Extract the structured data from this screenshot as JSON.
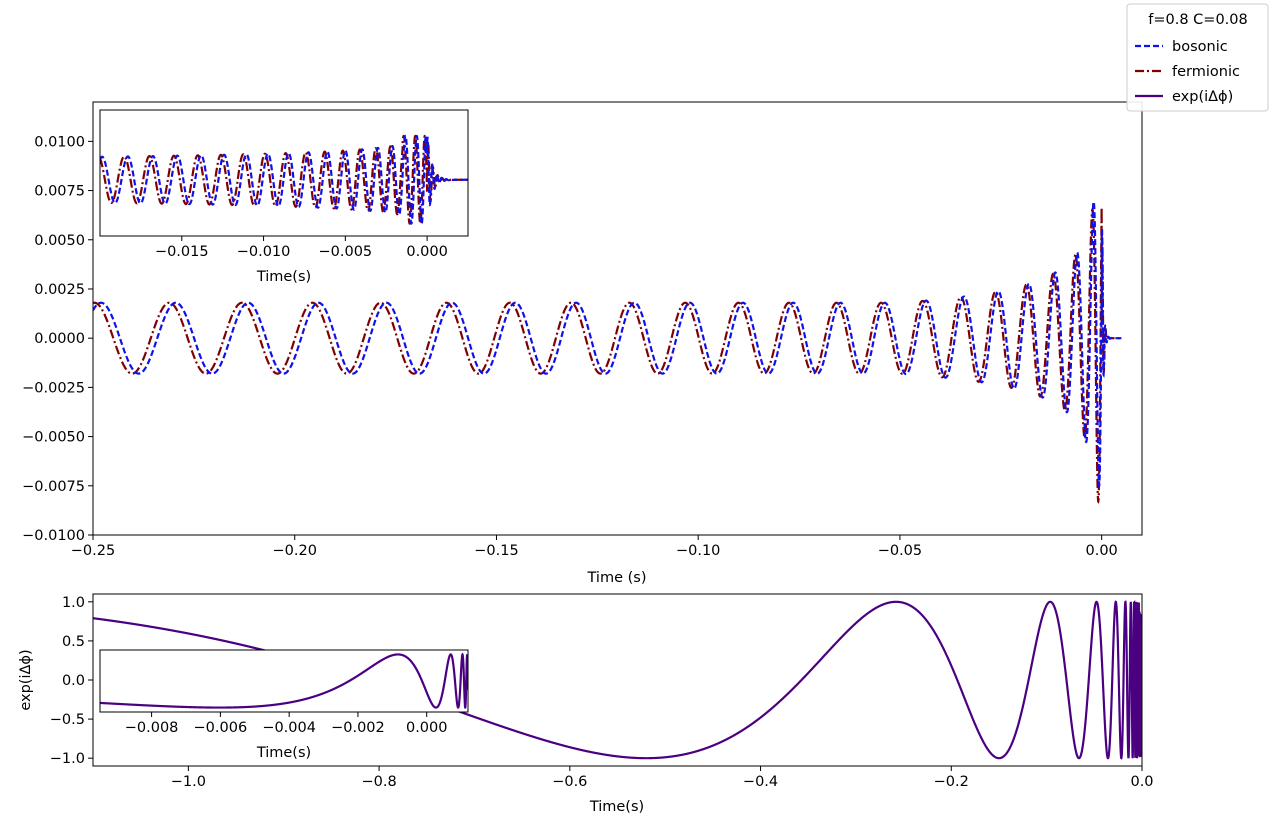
{
  "colors": {
    "bosonic": "#1010e8",
    "fermionic": "#800000",
    "phase": "#4b0082"
  },
  "legend": {
    "title": "f=0.8 C=0.08",
    "entries": [
      {
        "key": "bosonic",
        "label": "bosonic",
        "style": "dashed"
      },
      {
        "key": "fermionic",
        "label": "fermionic",
        "style": "dashdot"
      },
      {
        "key": "phase",
        "label": "exp(iΔϕ)",
        "style": "solid"
      }
    ]
  },
  "chart_data": [
    {
      "type": "line",
      "panel": "top-main",
      "xlabel": "Time (s)",
      "ylabel": "",
      "xlim": [
        -0.25,
        0.01
      ],
      "ylim": [
        -0.01,
        0.012
      ],
      "xticks": [
        "−0.25",
        "−0.20",
        "−0.15",
        "−0.10",
        "−0.05",
        "0.00"
      ],
      "yticks": [
        "−0.0100",
        "−0.0075",
        "−0.0050",
        "−0.0025",
        "0.0000",
        "0.0025",
        "0.0050",
        "0.0075",
        "0.0100"
      ],
      "series": [
        {
          "name": "bosonic",
          "style": "dashed",
          "peak_t": 0.0,
          "amp_early": 0.0018,
          "peak_amp": 0.0075,
          "ringdown_end": 0.0015
        },
        {
          "name": "fermionic",
          "style": "dashdot",
          "peak_t": 0.0,
          "amp_early": 0.0018,
          "peak_amp": 0.0083,
          "ringdown_end": 0.0015
        }
      ]
    },
    {
      "type": "line",
      "panel": "top-inset",
      "xlabel": "Time(s)",
      "xlim": [
        -0.02,
        0.0025
      ],
      "xticks": [
        "−0.015",
        "−0.010",
        "−0.005",
        "0.000"
      ],
      "series": [
        {
          "name": "bosonic",
          "style": "dashed"
        },
        {
          "name": "fermionic",
          "style": "dashdot"
        }
      ]
    },
    {
      "type": "line",
      "panel": "bottom-main",
      "xlabel": "Time(s)",
      "ylabel": "exp(iΔϕ)",
      "xlim": [
        -1.1,
        0.0
      ],
      "ylim": [
        -1.1,
        1.1
      ],
      "xticks": [
        "−1.0",
        "−0.8",
        "−0.6",
        "−0.4",
        "−0.2",
        "0.0"
      ],
      "yticks": [
        "−1.0",
        "−0.5",
        "0.0",
        "0.5",
        "1.0"
      ],
      "series": [
        {
          "name": "exp(iΔϕ)",
          "style": "solid",
          "minimum": {
            "x": -0.52,
            "y": -1.0
          },
          "maximum": {
            "x": -0.225,
            "y": 1.0
          }
        }
      ]
    },
    {
      "type": "line",
      "panel": "bottom-inset",
      "xlabel": "Time(s)",
      "xlim": [
        -0.0095,
        0.0012
      ],
      "ylim": [
        -0.42,
        0.42
      ],
      "xticks": [
        "−0.008",
        "−0.006",
        "−0.004",
        "−0.002",
        "0.000"
      ],
      "series": [
        {
          "name": "exp(iΔϕ)",
          "style": "solid",
          "amplitude": 0.36
        }
      ]
    }
  ]
}
